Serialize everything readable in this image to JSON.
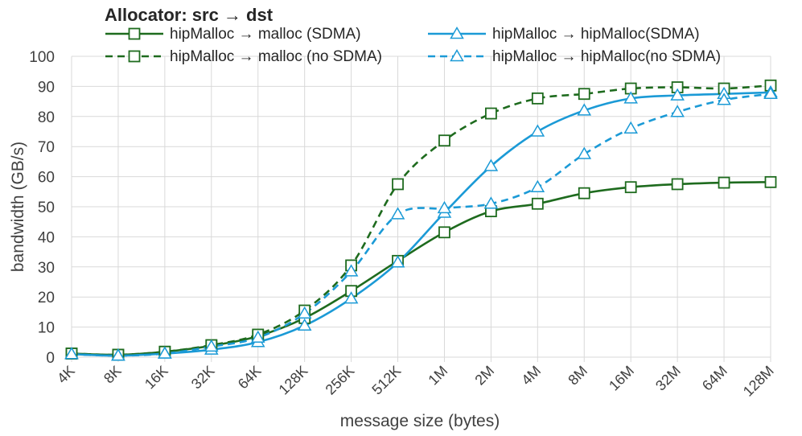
{
  "chart_data": {
    "type": "line",
    "title": "",
    "legend_title": "Allocator: src → dst",
    "xlabel": "message size (bytes)",
    "ylabel": "bandwidth (GB/s)",
    "ylim": [
      0,
      100
    ],
    "yticks": [
      0,
      10,
      20,
      30,
      40,
      50,
      60,
      70,
      80,
      90,
      100
    ],
    "grid": true,
    "legend_position": "top",
    "categories": [
      "4K",
      "8K",
      "16K",
      "32K",
      "64K",
      "128K",
      "256K",
      "512K",
      "1M",
      "2M",
      "4M",
      "8M",
      "16M",
      "32M",
      "64M",
      "128M"
    ],
    "series": [
      {
        "name": "hipMalloc → malloc (SDMA)",
        "color": "#1e6b1e",
        "dash": "solid",
        "marker": "square",
        "values": [
          1.2,
          0.8,
          1.8,
          3.8,
          7.0,
          13.0,
          22.0,
          32.0,
          41.5,
          48.5,
          51.0,
          54.5,
          56.5,
          57.5,
          58.0,
          58.2
        ]
      },
      {
        "name": "hipMalloc → malloc (no SDMA)",
        "color": "#1e6b1e",
        "dash": "dashed",
        "marker": "square",
        "values": [
          1.2,
          0.8,
          1.8,
          4.0,
          7.5,
          15.5,
          30.5,
          57.5,
          72.0,
          81.0,
          86.0,
          87.5,
          89.3,
          89.7,
          89.3,
          90.3
        ]
      },
      {
        "name": "hipMalloc → hipMalloc(SDMA)",
        "color": "#1b9ad6",
        "dash": "solid",
        "marker": "triangle",
        "values": [
          1.0,
          0.5,
          1.2,
          2.5,
          5.0,
          10.5,
          19.5,
          31.5,
          48.0,
          63.5,
          75.0,
          82.0,
          86.0,
          87.0,
          87.5,
          88.0
        ]
      },
      {
        "name": "hipMalloc → hipMalloc(no SDMA)",
        "color": "#1b9ad6",
        "dash": "dashed",
        "marker": "triangle",
        "values": [
          1.0,
          0.5,
          1.2,
          3.5,
          6.5,
          14.5,
          28.5,
          47.5,
          49.5,
          51.0,
          56.5,
          67.5,
          76.0,
          81.5,
          85.5,
          87.5
        ]
      }
    ]
  }
}
